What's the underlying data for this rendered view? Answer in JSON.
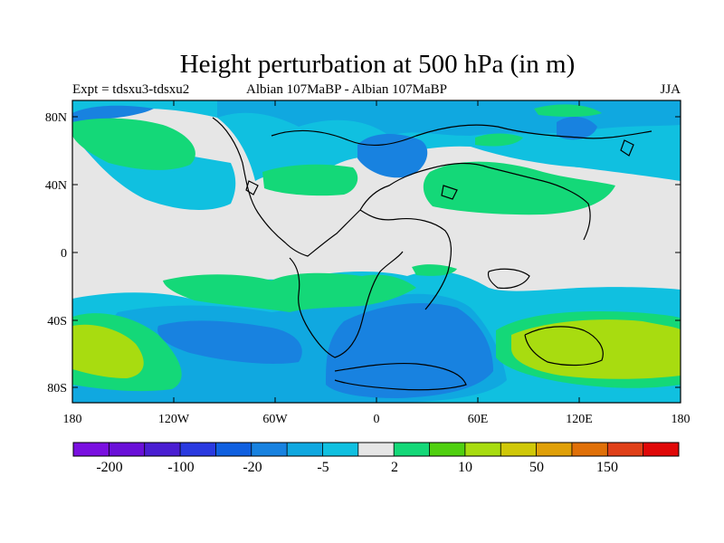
{
  "title": "Height perturbation at 500 hPa (in m)",
  "subtitle_left": "Expt = tdsxu3-tdsxu2",
  "subtitle_center": "Albian   107MaBP - Albian   107MaBP",
  "subtitle_right": "JJA",
  "map": {
    "lon_ticks": [
      "180",
      "120W",
      "60W",
      "0",
      "60E",
      "120E",
      "180"
    ],
    "lat_ticks": [
      "80N",
      "40N",
      "0",
      "40S",
      "80S"
    ]
  },
  "colorbar": {
    "labels": [
      "-200",
      "-100",
      "-20",
      "-5",
      "2",
      "10",
      "50",
      "150"
    ],
    "colors": [
      "#7a10e0",
      "#6a10d8",
      "#4a1ed2",
      "#2a3ae0",
      "#1060e0",
      "#1882e0",
      "#10a8e0",
      "#10c0e0",
      "#e6e6e6",
      "#14d878",
      "#50d010",
      "#a8dc10",
      "#d0c808",
      "#e0a008",
      "#e07008",
      "#e04018",
      "#e00808"
    ]
  },
  "colors": {
    "background": "#e6e6e6",
    "light_blue": "#10c0e0",
    "mid_blue": "#10a8e0",
    "dark_blue": "#1882e0",
    "green": "#14d878",
    "yellow_green": "#a8dc10",
    "bright_green": "#50d010"
  }
}
